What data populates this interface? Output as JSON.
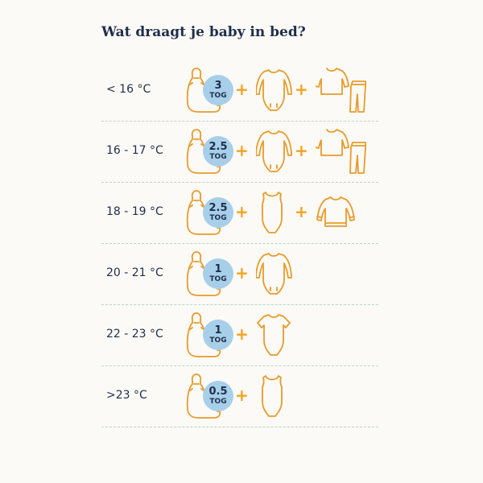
{
  "title": "Wat draagt je baby in bed?",
  "rows": [
    {
      "temp": "< 16 °C",
      "tog_value": "3",
      "tog_unit": "TOG",
      "items": [
        "longsleeve-bodysuit",
        "pajama-set"
      ]
    },
    {
      "temp": "16 - 17 °C",
      "tog_value": "2.5",
      "tog_unit": "TOG",
      "items": [
        "longsleeve-bodysuit",
        "pajama-set"
      ]
    },
    {
      "temp": "18 - 19 °C",
      "tog_value": "2.5",
      "tog_unit": "TOG",
      "items": [
        "sleeveless-bodysuit",
        "long-sleeve-shirt"
      ]
    },
    {
      "temp": "20 - 21 °C",
      "tog_value": "1",
      "tog_unit": "TOG",
      "items": [
        "longsleeve-bodysuit"
      ]
    },
    {
      "temp": "22 - 23 °C",
      "tog_value": "1",
      "tog_unit": "TOG",
      "items": [
        "shortsleeve-bodysuit"
      ]
    },
    {
      "temp": ">23  °C",
      "tog_value": "0.5",
      "tog_unit": "TOG",
      "items": [
        "sleeveless-bodysuit"
      ]
    }
  ],
  "colors": {
    "outline": "#e89b2b",
    "plus": "#f2a321",
    "tog_badge": "#a8cfea",
    "divider": "#b5dac9",
    "text": "#1f2e4a"
  }
}
